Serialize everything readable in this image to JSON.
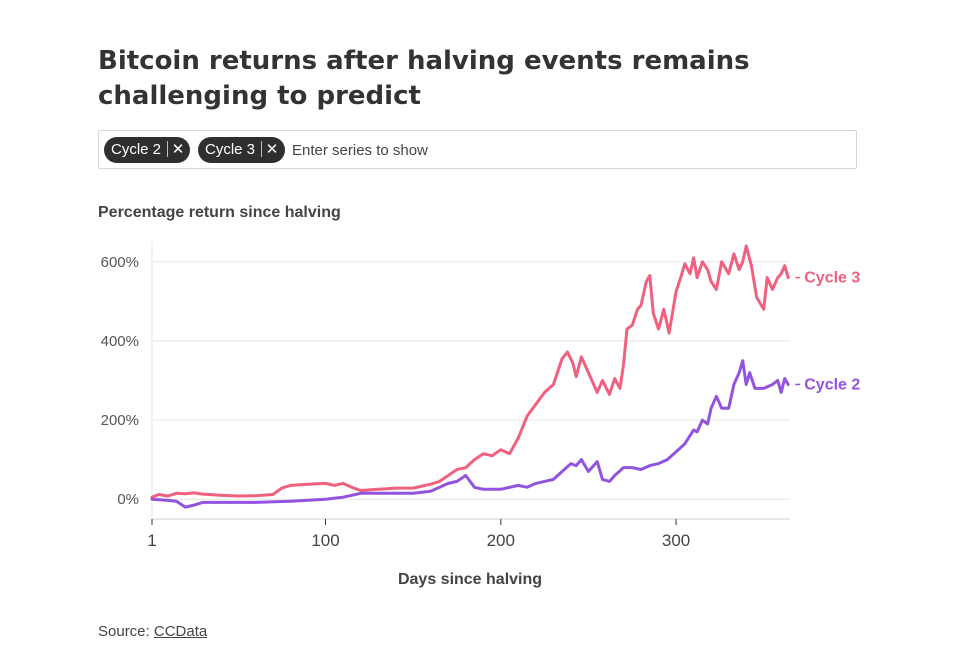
{
  "title": "Bitcoin returns after halving events remains challenging to predict",
  "filter": {
    "chips": [
      {
        "label": "Cycle 2",
        "remove": "✕"
      },
      {
        "label": "Cycle 3",
        "remove": "✕"
      }
    ],
    "placeholder": "Enter series to show"
  },
  "source": {
    "prefix": "Source:",
    "link_text": "CCData"
  },
  "colors": {
    "cycle2": "#9254de",
    "cycle3": "#f0607f",
    "grid": "#e6e6e6",
    "axis": "#cccccc"
  },
  "chart_data": {
    "type": "line",
    "title": "",
    "ylabel": "Percentage return since halving",
    "xlabel": "Days since halving",
    "xlim": [
      1,
      365
    ],
    "ylim": [
      -50,
      650
    ],
    "xticks": [
      1,
      100,
      200,
      300
    ],
    "yticks": [
      0,
      200,
      400,
      600
    ],
    "ytick_labels": [
      "0%",
      "200%",
      "400%",
      "600%"
    ],
    "grid": true,
    "legend": "end-of-line labels",
    "series": [
      {
        "name": "Cycle 3",
        "x": [
          1,
          5,
          10,
          15,
          20,
          25,
          30,
          40,
          50,
          60,
          70,
          75,
          80,
          90,
          100,
          105,
          110,
          115,
          120,
          130,
          140,
          150,
          160,
          165,
          170,
          175,
          180,
          185,
          190,
          195,
          200,
          205,
          210,
          215,
          220,
          225,
          230,
          235,
          238,
          241,
          243,
          246,
          250,
          255,
          258,
          262,
          265,
          268,
          270,
          272,
          275,
          278,
          280,
          283,
          285,
          287,
          290,
          293,
          296,
          300,
          303,
          305,
          308,
          310,
          312,
          315,
          318,
          320,
          323,
          326,
          330,
          333,
          336,
          338,
          340,
          343,
          346,
          350,
          352,
          355,
          358,
          360,
          362,
          364
        ],
        "y": [
          5,
          12,
          8,
          15,
          14,
          16,
          13,
          10,
          8,
          9,
          12,
          28,
          35,
          38,
          40,
          35,
          40,
          30,
          22,
          25,
          28,
          28,
          38,
          45,
          60,
          75,
          80,
          100,
          115,
          110,
          125,
          115,
          155,
          210,
          240,
          270,
          290,
          355,
          372,
          345,
          310,
          360,
          320,
          270,
          300,
          265,
          305,
          280,
          340,
          430,
          440,
          480,
          490,
          550,
          565,
          470,
          430,
          480,
          420,
          525,
          565,
          595,
          570,
          610,
          560,
          600,
          580,
          550,
          530,
          600,
          570,
          620,
          580,
          600,
          640,
          590,
          510,
          480,
          560,
          530,
          560,
          570,
          590,
          560
        ]
      },
      {
        "name": "Cycle 2",
        "x": [
          1,
          10,
          15,
          20,
          25,
          30,
          40,
          60,
          80,
          100,
          110,
          115,
          120,
          130,
          140,
          150,
          160,
          170,
          175,
          180,
          185,
          190,
          200,
          210,
          215,
          220,
          225,
          230,
          235,
          240,
          243,
          246,
          250,
          255,
          258,
          262,
          265,
          270,
          275,
          280,
          285,
          290,
          295,
          300,
          305,
          310,
          312,
          315,
          318,
          320,
          323,
          326,
          330,
          333,
          336,
          338,
          340,
          342,
          345,
          350,
          355,
          358,
          360,
          362,
          364
        ],
        "y": [
          0,
          -3,
          -5,
          -20,
          -15,
          -8,
          -8,
          -8,
          -5,
          0,
          5,
          10,
          15,
          15,
          15,
          15,
          20,
          40,
          45,
          60,
          30,
          25,
          25,
          35,
          30,
          40,
          45,
          50,
          70,
          90,
          85,
          100,
          70,
          95,
          50,
          45,
          60,
          80,
          80,
          75,
          85,
          90,
          100,
          120,
          140,
          175,
          170,
          200,
          190,
          230,
          260,
          230,
          230,
          290,
          320,
          350,
          290,
          320,
          280,
          280,
          290,
          300,
          270,
          305,
          290
        ]
      }
    ]
  }
}
